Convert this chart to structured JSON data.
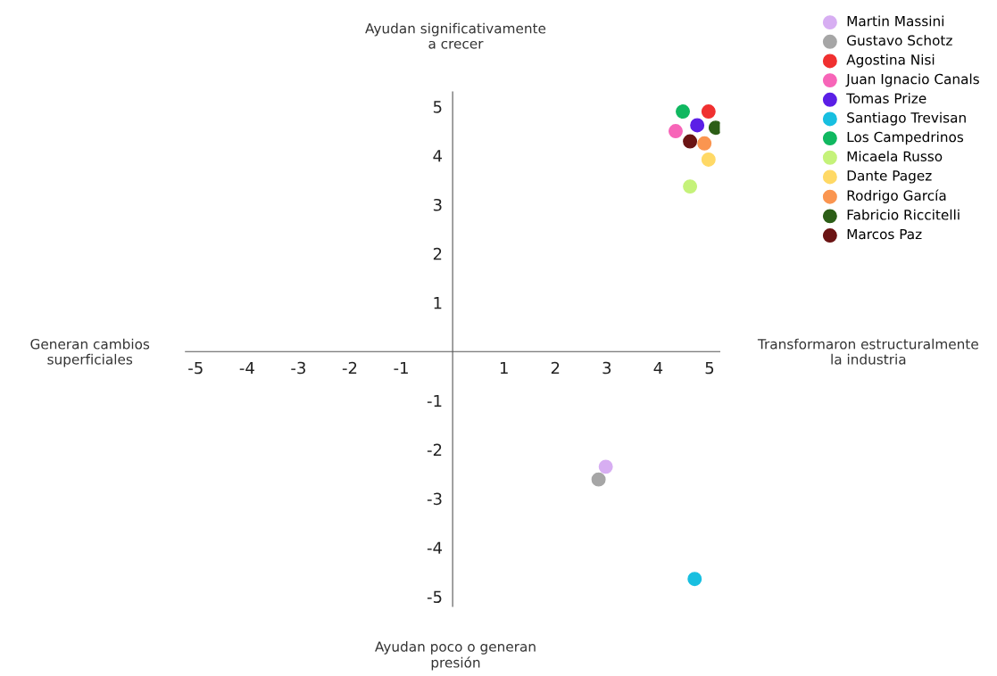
{
  "chart_data": {
    "type": "scatter",
    "annotations": [
      "Generan cambios\nsuperficiales",
      "Transformaron estructuralmente\nla industria",
      "Ayudan significativamente\na crecer",
      "Ayudan poco o generan\npresión"
    ],
    "series": [
      {
        "name": "Martin Massini",
        "color": "#d7aef2",
        "x": [
          2.98
        ],
        "values": [
          -2.35
        ]
      },
      {
        "name": "Gustavo Schotz",
        "color": "#a6a6a6",
        "x": [
          2.84
        ],
        "values": [
          -2.61
        ]
      },
      {
        "name": "Agostina Nisi",
        "color": "#f03030",
        "x": [
          4.98
        ],
        "values": [
          4.9
        ]
      },
      {
        "name": "Juan Ignacio Canals",
        "color": "#f765b8",
        "x": [
          4.34
        ],
        "values": [
          4.5
        ]
      },
      {
        "name": "Tomas Prize",
        "color": "#5b1fe6",
        "x": [
          4.76
        ],
        "values": [
          4.62
        ]
      },
      {
        "name": "Santiago Trevisan",
        "color": "#18bfe0",
        "x": [
          4.71
        ],
        "values": [
          -4.64
        ]
      },
      {
        "name": "Los Campedrinos",
        "color": "#10b860",
        "x": [
          4.48
        ],
        "values": [
          4.9
        ]
      },
      {
        "name": "Micaela Russo",
        "color": "#c5f27a",
        "x": [
          4.62
        ],
        "values": [
          3.37
        ]
      },
      {
        "name": "Dante Pagez",
        "color": "#ffd966",
        "x": [
          4.98
        ],
        "values": [
          3.92
        ]
      },
      {
        "name": "Rodrigo García",
        "color": "#fa9550",
        "x": [
          4.9
        ],
        "values": [
          4.25
        ]
      },
      {
        "name": "Fabricio Riccitelli",
        "color": "#2c5e17",
        "x": [
          5.12
        ],
        "values": [
          4.57
        ]
      },
      {
        "name": "Marcos Paz",
        "color": "#6b1414",
        "x": [
          4.62
        ],
        "values": [
          4.29
        ]
      }
    ],
    "xlim": [
      -5.2,
      5.2
    ],
    "ylim": [
      -5.2,
      5.3
    ],
    "xticks": [
      -5,
      -4,
      -3,
      -2,
      -1,
      1,
      2,
      3,
      4,
      5
    ],
    "yticks": [
      -5,
      -4,
      -3,
      -2,
      -1,
      1,
      2,
      3,
      4,
      5
    ],
    "marker": "circle",
    "grid": false,
    "legend": "top right"
  }
}
